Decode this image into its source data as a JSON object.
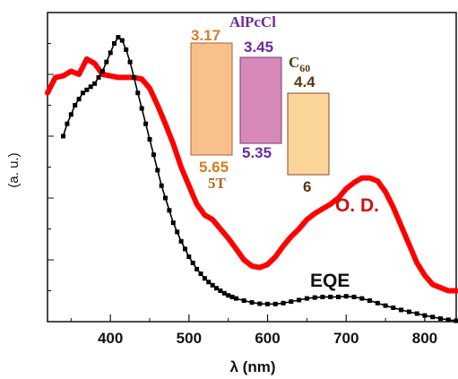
{
  "chart_data": {
    "type": "line",
    "title": "",
    "xlabel": "λ (nm)",
    "ylabel": "(a. u.)",
    "xlim": [
      320,
      840
    ],
    "ylim": [
      0,
      1
    ],
    "xticks": [
      400,
      500,
      600,
      700,
      800
    ],
    "grid": false,
    "colors": {
      "od": "#ff0000",
      "eqe": "#000000",
      "od_label": "#cc1111"
    },
    "series": [
      {
        "name": "O. D.",
        "x": [
          320,
          330,
          340,
          350,
          360,
          370,
          380,
          390,
          400,
          410,
          420,
          430,
          440,
          450,
          460,
          470,
          480,
          490,
          500,
          510,
          520,
          530,
          540,
          550,
          560,
          570,
          580,
          590,
          600,
          610,
          620,
          630,
          640,
          650,
          660,
          670,
          680,
          690,
          700,
          710,
          720,
          730,
          740,
          750,
          760,
          770,
          780,
          790,
          800,
          810,
          820,
          830,
          840
        ],
        "y": [
          0.74,
          0.79,
          0.795,
          0.81,
          0.8,
          0.85,
          0.835,
          0.8,
          0.795,
          0.79,
          0.79,
          0.79,
          0.785,
          0.755,
          0.7,
          0.64,
          0.575,
          0.5,
          0.44,
          0.38,
          0.345,
          0.33,
          0.3,
          0.27,
          0.235,
          0.2,
          0.18,
          0.175,
          0.185,
          0.21,
          0.245,
          0.275,
          0.3,
          0.33,
          0.35,
          0.365,
          0.38,
          0.4,
          0.43,
          0.45,
          0.465,
          0.465,
          0.455,
          0.42,
          0.37,
          0.31,
          0.25,
          0.19,
          0.15,
          0.12,
          0.11,
          0.1,
          0.1
        ]
      },
      {
        "name": "EQE",
        "x": [
          340,
          345,
          350,
          355,
          360,
          365,
          370,
          375,
          380,
          385,
          390,
          395,
          400,
          405,
          410,
          415,
          420,
          425,
          430,
          435,
          440,
          445,
          450,
          455,
          460,
          465,
          470,
          475,
          480,
          485,
          490,
          495,
          500,
          505,
          510,
          515,
          520,
          525,
          530,
          535,
          540,
          545,
          550,
          555,
          560,
          570,
          580,
          590,
          600,
          610,
          620,
          630,
          640,
          650,
          660,
          670,
          680,
          690,
          700,
          710,
          720,
          730,
          740,
          750,
          760,
          770,
          780,
          790,
          800,
          810,
          820,
          830,
          840
        ],
        "y": [
          0.6,
          0.64,
          0.67,
          0.7,
          0.72,
          0.74,
          0.75,
          0.76,
          0.77,
          0.79,
          0.81,
          0.84,
          0.87,
          0.9,
          0.92,
          0.91,
          0.88,
          0.84,
          0.79,
          0.74,
          0.69,
          0.64,
          0.59,
          0.54,
          0.49,
          0.44,
          0.4,
          0.36,
          0.32,
          0.29,
          0.26,
          0.235,
          0.21,
          0.19,
          0.17,
          0.155,
          0.14,
          0.128,
          0.118,
          0.108,
          0.1,
          0.092,
          0.085,
          0.08,
          0.075,
          0.068,
          0.062,
          0.058,
          0.057,
          0.057,
          0.06,
          0.065,
          0.07,
          0.075,
          0.078,
          0.08,
          0.08,
          0.08,
          0.082,
          0.08,
          0.075,
          0.068,
          0.06,
          0.052,
          0.045,
          0.038,
          0.032,
          0.026,
          0.02,
          0.015,
          0.01,
          0.006,
          0.003
        ]
      }
    ],
    "annotations": {
      "od_label": "O. D.",
      "eqe_label": "EQE"
    },
    "inset": {
      "materials": [
        {
          "name": "5T",
          "top": "3.17",
          "bottom": "5.65",
          "fill": "#f8c08a",
          "label_color": "#d97a1e",
          "name_color": "#a86a20"
        },
        {
          "name": "AlPcCl",
          "top": "3.45",
          "bottom": "5.35",
          "fill": "#d78ab8",
          "label_color": "#6a2a9a",
          "name_color": "#6a2a9a"
        },
        {
          "name": "C",
          "name_sub": "60",
          "top": "4.4",
          "bottom": "6",
          "fill": "#fbd59a",
          "label_color": "#5a3510",
          "name_color": "#5a3510"
        }
      ]
    }
  }
}
